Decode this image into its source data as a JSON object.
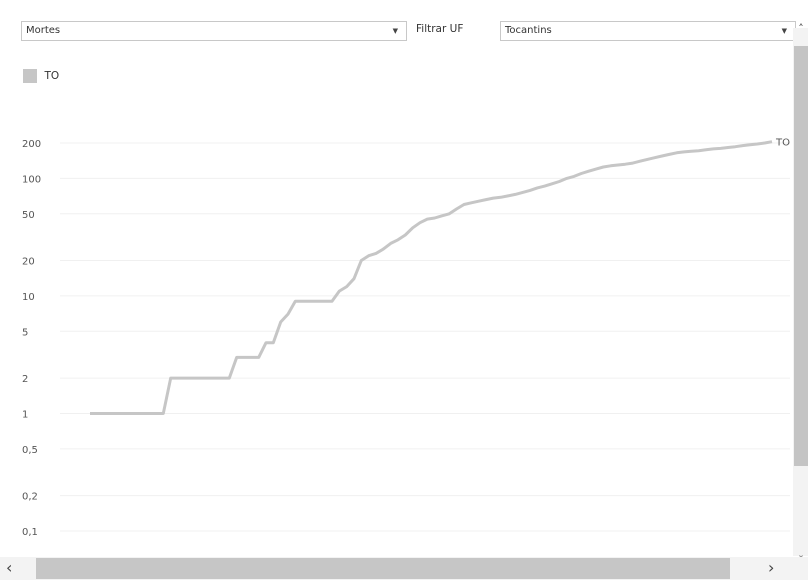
{
  "controls": {
    "measure_value": "Mortes",
    "filter_label": "Filtrar UF",
    "uf_value": "Tocantins"
  },
  "legend": {
    "label": "TO",
    "color": "#c6c6c6"
  },
  "chart_data": {
    "type": "line",
    "title": "",
    "xlabel": "",
    "ylabel": "",
    "yscale": "log",
    "yticks": [
      {
        "value": 0.1,
        "label": "0,1"
      },
      {
        "value": 0.2,
        "label": "0,2"
      },
      {
        "value": 0.5,
        "label": "0,5"
      },
      {
        "value": 1,
        "label": "1"
      },
      {
        "value": 2,
        "label": "2"
      },
      {
        "value": 5,
        "label": "5"
      },
      {
        "value": 10,
        "label": "10"
      },
      {
        "value": 20,
        "label": "20"
      },
      {
        "value": 50,
        "label": "50"
      },
      {
        "value": 100,
        "label": "100"
      },
      {
        "value": 200,
        "label": "200"
      }
    ],
    "grid": true,
    "series": [
      {
        "name": "TO",
        "color": "#c6c6c6",
        "values": [
          1,
          1,
          1,
          1,
          1,
          1,
          1,
          1,
          1,
          1,
          1,
          2,
          2,
          2,
          2,
          2,
          2,
          2,
          2,
          2,
          3,
          3,
          3,
          3,
          4,
          4,
          6,
          7,
          9,
          9,
          9,
          9,
          9,
          9,
          11,
          12,
          14,
          20,
          22,
          23,
          25,
          28,
          30,
          33,
          38,
          42,
          45,
          46,
          48,
          50,
          55,
          60,
          62,
          64,
          66,
          68,
          69,
          71,
          73,
          76,
          79,
          83,
          86,
          90,
          94,
          100,
          104,
          110,
          115,
          120,
          125,
          128,
          130,
          132,
          135,
          140,
          145,
          150,
          155,
          160,
          165,
          168,
          170,
          172,
          175,
          178,
          180,
          183,
          186,
          190,
          193,
          196,
          200,
          205
        ]
      }
    ],
    "end_label": "TO"
  },
  "scrollbars": {
    "up_icon": "chevron-up-icon",
    "down_icon": "chevron-down-icon",
    "left_icon": "chevron-left-icon",
    "right_icon": "chevron-right-icon"
  }
}
